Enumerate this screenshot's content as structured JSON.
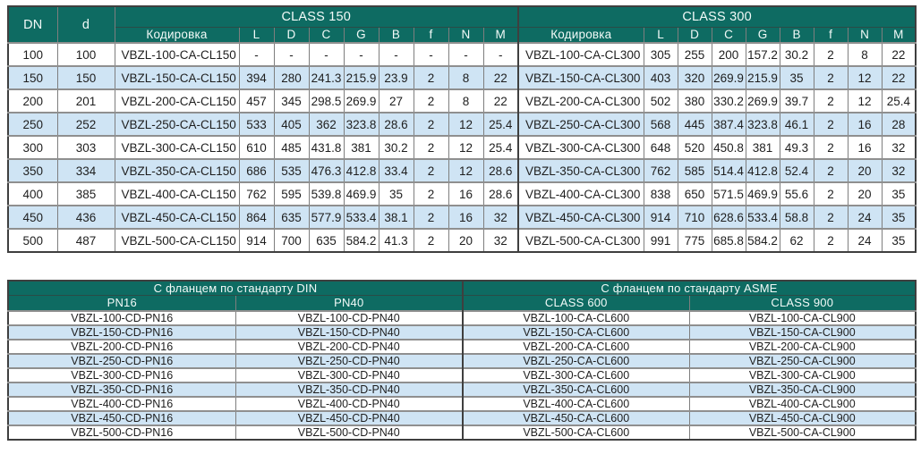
{
  "colors": {
    "header_bg": "#0e6b62",
    "header_text": "#f2faf8",
    "stripe_bg": "#cfe4f4",
    "text": "#1e1e1e",
    "grid_border": "#7e7e7e",
    "dark_border": "#3f3f3f"
  },
  "table1": {
    "col_dn": "DN",
    "col_d": "d",
    "sections": [
      {
        "title": "CLASS 150",
        "col_code": "Кодировка",
        "dim_cols": [
          "L",
          "D",
          "C",
          "G",
          "B",
          "f",
          "N",
          "M"
        ]
      },
      {
        "title": "CLASS 300",
        "col_code": "Кодировка",
        "dim_cols": [
          "L",
          "D",
          "C",
          "G",
          "B",
          "f",
          "N",
          "M"
        ]
      }
    ],
    "rows": [
      {
        "dn": "100",
        "d": "100",
        "class150": {
          "code": "VBZL-100-CA-CL150",
          "vals": [
            "-",
            "-",
            "-",
            "-",
            "-",
            "-",
            "-",
            "-"
          ]
        },
        "class300": {
          "code": "VBZL-100-CA-CL300",
          "vals": [
            "305",
            "255",
            "200",
            "157.2",
            "30.2",
            "2",
            "8",
            "22"
          ]
        }
      },
      {
        "dn": "150",
        "d": "150",
        "class150": {
          "code": "VBZL-150-CA-CL150",
          "vals": [
            "394",
            "280",
            "241.3",
            "215.9",
            "23.9",
            "2",
            "8",
            "22"
          ]
        },
        "class300": {
          "code": "VBZL-150-CA-CL300",
          "vals": [
            "403",
            "320",
            "269.9",
            "215.9",
            "35",
            "2",
            "12",
            "22"
          ]
        }
      },
      {
        "dn": "200",
        "d": "201",
        "class150": {
          "code": "VBZL-200-CA-CL150",
          "vals": [
            "457",
            "345",
            "298.5",
            "269.9",
            "27",
            "2",
            "8",
            "22"
          ]
        },
        "class300": {
          "code": "VBZL-200-CA-CL300",
          "vals": [
            "502",
            "380",
            "330.2",
            "269.9",
            "39.7",
            "2",
            "12",
            "25.4"
          ]
        }
      },
      {
        "dn": "250",
        "d": "252",
        "class150": {
          "code": "VBZL-250-CA-CL150",
          "vals": [
            "533",
            "405",
            "362",
            "323.8",
            "28.6",
            "2",
            "12",
            "25.4"
          ]
        },
        "class300": {
          "code": "VBZL-250-CA-CL300",
          "vals": [
            "568",
            "445",
            "387.4",
            "323.8",
            "46.1",
            "2",
            "16",
            "28"
          ]
        }
      },
      {
        "dn": "300",
        "d": "303",
        "class150": {
          "code": "VBZL-300-CA-CL150",
          "vals": [
            "610",
            "485",
            "431.8",
            "381",
            "30.2",
            "2",
            "12",
            "25.4"
          ]
        },
        "class300": {
          "code": "VBZL-300-CA-CL300",
          "vals": [
            "648",
            "520",
            "450.8",
            "381",
            "49.3",
            "2",
            "16",
            "32"
          ]
        }
      },
      {
        "dn": "350",
        "d": "334",
        "class150": {
          "code": "VBZL-350-CA-CL150",
          "vals": [
            "686",
            "535",
            "476.3",
            "412.8",
            "33.4",
            "2",
            "12",
            "28.6"
          ]
        },
        "class300": {
          "code": "VBZL-350-CA-CL300",
          "vals": [
            "762",
            "585",
            "514.4",
            "412.8",
            "52.4",
            "2",
            "20",
            "32"
          ]
        }
      },
      {
        "dn": "400",
        "d": "385",
        "class150": {
          "code": "VBZL-400-CA-CL150",
          "vals": [
            "762",
            "595",
            "539.8",
            "469.9",
            "35",
            "2",
            "16",
            "28.6"
          ]
        },
        "class300": {
          "code": "VBZL-400-CA-CL300",
          "vals": [
            "838",
            "650",
            "571.5",
            "469.9",
            "55.6",
            "2",
            "20",
            "35"
          ]
        }
      },
      {
        "dn": "450",
        "d": "436",
        "class150": {
          "code": "VBZL-450-CA-CL150",
          "vals": [
            "864",
            "635",
            "577.9",
            "533.4",
            "38.1",
            "2",
            "16",
            "32"
          ]
        },
        "class300": {
          "code": "VBZL-450-CA-CL300",
          "vals": [
            "914",
            "710",
            "628.6",
            "533.4",
            "58.8",
            "2",
            "24",
            "35"
          ]
        }
      },
      {
        "dn": "500",
        "d": "487",
        "class150": {
          "code": "VBZL-500-CA-CL150",
          "vals": [
            "914",
            "700",
            "635",
            "584.2",
            "41.3",
            "2",
            "20",
            "32"
          ]
        },
        "class300": {
          "code": "VBZL-500-CA-CL300",
          "vals": [
            "991",
            "775",
            "685.8",
            "584.2",
            "62",
            "2",
            "24",
            "35"
          ]
        }
      }
    ]
  },
  "table2": {
    "sections": [
      {
        "title": "С фланцем по стандарту DIN",
        "cols": [
          "PN16",
          "PN40"
        ]
      },
      {
        "title": "С фланцем по стандарту ASME",
        "cols": [
          "CLASS 600",
          "CLASS 900"
        ]
      }
    ],
    "rows": [
      [
        "VBZL-100-CD-PN16",
        "VBZL-100-CD-PN40",
        "VBZL-100-CA-CL600",
        "VBZL-100-CA-CL900"
      ],
      [
        "VBZL-150-CD-PN16",
        "VBZL-150-CD-PN40",
        "VBZL-150-CA-CL600",
        "VBZL-150-CA-CL900"
      ],
      [
        "VBZL-200-CD-PN16",
        "VBZL-200-CD-PN40",
        "VBZL-200-CA-CL600",
        "VBZL-200-CA-CL900"
      ],
      [
        "VBZL-250-CD-PN16",
        "VBZL-250-CD-PN40",
        "VBZL-250-CA-CL600",
        "VBZL-250-CA-CL900"
      ],
      [
        "VBZL-300-CD-PN16",
        "VBZL-300-CD-PN40",
        "VBZL-300-CA-CL600",
        "VBZL-300-CA-CL900"
      ],
      [
        "VBZL-350-CD-PN16",
        "VBZL-350-CD-PN40",
        "VBZL-350-CA-CL600",
        "VBZL-350-CA-CL900"
      ],
      [
        "VBZL-400-CD-PN16",
        "VBZL-400-CD-PN40",
        "VBZL-400-CA-CL600",
        "VBZL-400-CA-CL900"
      ],
      [
        "VBZL-450-CD-PN16",
        "VBZL-450-CD-PN40",
        "VBZL-450-CA-CL600",
        "VBZL-450-CA-CL900"
      ],
      [
        "VBZL-500-CD-PN16",
        "VBZL-500-CD-PN40",
        "VBZL-500-CA-CL600",
        "VBZL-500-CA-CL900"
      ]
    ]
  }
}
